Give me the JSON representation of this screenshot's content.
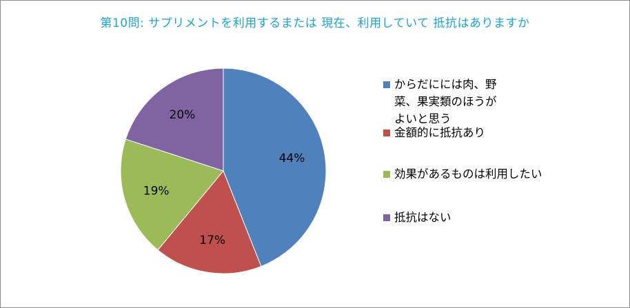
{
  "chart_data": {
    "type": "pie",
    "title": "第10問: サプリメントを利用するまたは 現在、利用していて 抵抗はありますか",
    "categories": [
      "からだにには肉、野菜、果実類のほうがよいと思う",
      "金額的に抵抗あり",
      "効果があるものは利用したい",
      "抵抗はない"
    ],
    "values": [
      44,
      17,
      19,
      20
    ],
    "data_labels": [
      "44%",
      "17%",
      "19%",
      "20%"
    ],
    "colors": [
      "#4f81bd",
      "#c0504d",
      "#9bbb59",
      "#8064a2"
    ],
    "legend_position": "right"
  }
}
